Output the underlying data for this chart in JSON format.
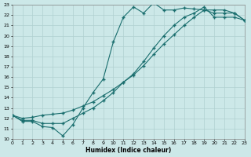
{
  "xlabel": "Humidex (Indice chaleur)",
  "background_color": "#cce8e8",
  "grid_color": "#b0d0d0",
  "line_color": "#1a6e6e",
  "marker_color": "#1a6e6e",
  "xlim": [
    0,
    23
  ],
  "ylim": [
    10,
    23
  ],
  "yticks": [
    10,
    11,
    12,
    13,
    14,
    15,
    16,
    17,
    18,
    19,
    20,
    21,
    22,
    23
  ],
  "xticks": [
    0,
    1,
    2,
    3,
    4,
    5,
    6,
    7,
    8,
    9,
    10,
    11,
    12,
    13,
    14,
    15,
    16,
    17,
    18,
    19,
    20,
    21,
    22,
    23
  ],
  "curve1_x": [
    0,
    1,
    2,
    3,
    4,
    5,
    6,
    7,
    8,
    9,
    10,
    11,
    12,
    13,
    14,
    15,
    16,
    17,
    18,
    19,
    20,
    21,
    22,
    23
  ],
  "curve1_y": [
    12.3,
    11.7,
    11.7,
    11.2,
    11.1,
    10.3,
    11.4,
    13.0,
    14.5,
    15.8,
    19.4,
    21.8,
    22.8,
    22.2,
    23.2,
    22.5,
    22.5,
    22.7,
    22.6,
    22.5,
    22.2,
    22.2,
    22.2,
    21.5
  ],
  "curve2_x": [
    0,
    1,
    2,
    3,
    4,
    5,
    6,
    7,
    8,
    9,
    10,
    11,
    12,
    13,
    14,
    15,
    16,
    17,
    18,
    19,
    20,
    21,
    22,
    23
  ],
  "curve2_y": [
    12.3,
    12.0,
    12.1,
    12.3,
    12.4,
    12.5,
    12.8,
    13.2,
    13.6,
    14.2,
    14.8,
    15.5,
    16.2,
    17.1,
    18.2,
    19.2,
    20.1,
    21.0,
    21.8,
    22.5,
    22.5,
    22.5,
    22.2,
    21.5
  ],
  "curve3_x": [
    0,
    1,
    2,
    3,
    4,
    5,
    6,
    7,
    8,
    9,
    10,
    11,
    12,
    13,
    14,
    15,
    16,
    17,
    18,
    19,
    20,
    21,
    22,
    23
  ],
  "curve3_y": [
    12.3,
    11.8,
    11.8,
    11.5,
    11.5,
    11.5,
    12.0,
    12.5,
    13.0,
    13.7,
    14.5,
    15.5,
    16.3,
    17.5,
    18.8,
    20.0,
    21.0,
    21.8,
    22.2,
    22.8,
    21.8,
    21.8,
    21.8,
    21.5
  ]
}
